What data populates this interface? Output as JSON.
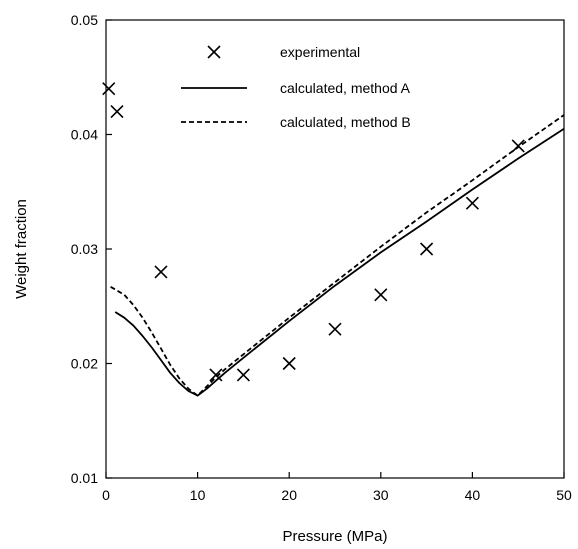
{
  "chart_data": {
    "type": "scatter",
    "title": "",
    "xlabel": "Pressure (MPa)",
    "ylabel": "Weight fraction",
    "xlim": [
      0,
      50
    ],
    "ylim": [
      0.01,
      0.05
    ],
    "xticks": [
      0,
      10,
      20,
      30,
      40,
      50
    ],
    "yticks": [
      0.01,
      0.02,
      0.03,
      0.04,
      0.05
    ],
    "xtick_labels": [
      "0",
      "10",
      "20",
      "30",
      "40",
      "50"
    ],
    "ytick_labels": [
      "0.01",
      "0.02",
      "0.03",
      "0.04",
      "0.05"
    ],
    "grid": false,
    "legend_position": "top",
    "series": [
      {
        "name": "experimental",
        "kind": "scatter",
        "marker": "x",
        "color": "#000000",
        "x": [
          0.3,
          1.2,
          6,
          12,
          15,
          20,
          25,
          30,
          35,
          40,
          45
        ],
        "y": [
          0.044,
          0.042,
          0.028,
          0.019,
          0.019,
          0.02,
          0.023,
          0.026,
          0.03,
          0.034,
          0.039
        ]
      },
      {
        "name": "calculated, method A",
        "kind": "line",
        "dash": "solid",
        "color": "#000000",
        "x": [
          1,
          2,
          3,
          4,
          5,
          6,
          7,
          8,
          9,
          10,
          11,
          12,
          13,
          15,
          20,
          25,
          30,
          35,
          40,
          45,
          50
        ],
        "y": [
          0.0245,
          0.024,
          0.0233,
          0.0224,
          0.0214,
          0.0203,
          0.0192,
          0.0183,
          0.0176,
          0.0172,
          0.0178,
          0.0185,
          0.0192,
          0.0205,
          0.0237,
          0.0268,
          0.0297,
          0.0324,
          0.0352,
          0.0379,
          0.0405
        ]
      },
      {
        "name": "calculated, method B",
        "kind": "line",
        "dash": "dashed",
        "color": "#000000",
        "x": [
          0.5,
          2,
          3,
          4,
          5,
          6,
          7,
          8,
          9,
          10,
          11,
          12,
          13,
          15,
          20,
          25,
          30,
          35,
          40,
          45,
          50
        ],
        "y": [
          0.0267,
          0.026,
          0.0251,
          0.024,
          0.0227,
          0.0213,
          0.0199,
          0.0187,
          0.0178,
          0.0172,
          0.018,
          0.0188,
          0.0195,
          0.0208,
          0.024,
          0.0271,
          0.0302,
          0.0332,
          0.036,
          0.0389,
          0.0417
        ]
      }
    ]
  }
}
